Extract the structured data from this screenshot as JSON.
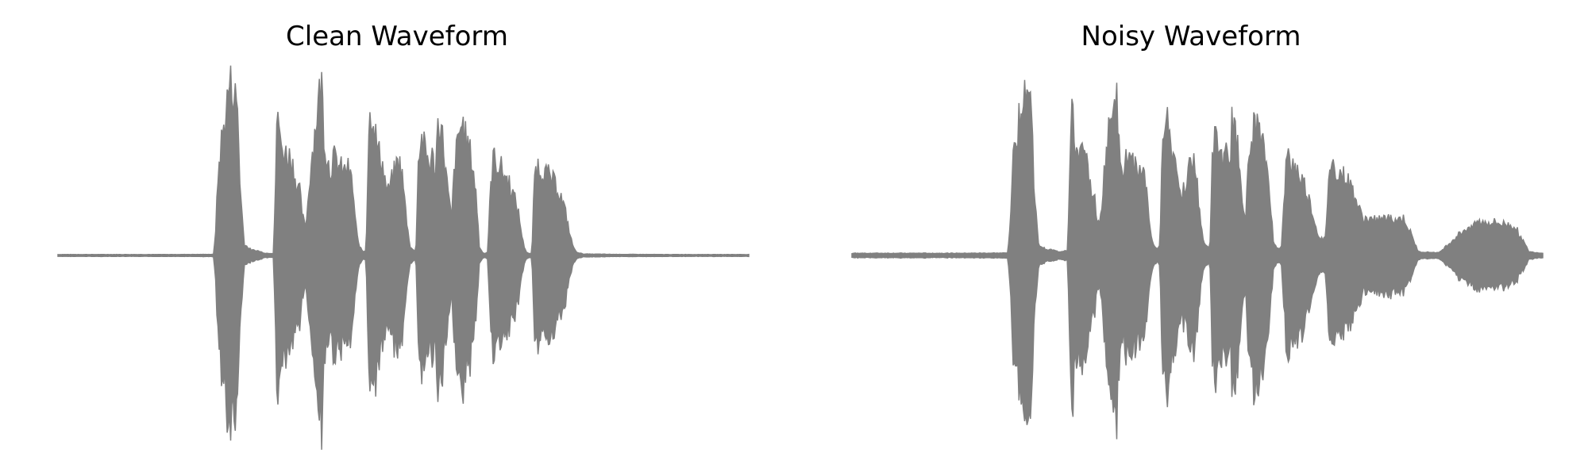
{
  "colors": {
    "waveform": "#808080",
    "background": "#ffffff"
  },
  "chart_data": [
    {
      "type": "area",
      "title": "Clean Waveform",
      "axes": "off",
      "grid": false,
      "x": [
        0.0,
        0.08,
        0.16,
        0.22,
        0.228,
        0.232,
        0.236,
        0.24,
        0.244,
        0.248,
        0.252,
        0.256,
        0.26,
        0.264,
        0.268,
        0.272,
        0.276,
        0.28,
        0.284,
        0.288,
        0.3,
        0.32,
        0.33,
        0.31,
        0.316,
        0.33,
        0.35,
        0.35,
        0.356,
        0.36,
        0.364,
        0.368,
        0.372,
        0.376,
        0.38,
        0.384,
        0.388,
        0.392,
        0.396,
        0.4,
        0.404,
        0.408,
        0.412,
        0.416,
        0.42,
        0.424,
        0.428,
        0.432,
        0.436,
        0.44,
        0.444,
        0.448,
        0.452,
        0.456,
        0.46,
        0.464,
        0.468,
        0.472,
        0.476,
        0.48,
        0.484,
        0.488,
        0.492,
        0.496,
        0.5,
        0.504,
        0.508,
        0.512,
        0.516,
        0.52,
        0.524,
        0.528,
        0.532,
        0.536,
        0.54,
        0.544,
        0.548,
        0.552,
        0.556,
        0.56,
        0.564,
        0.568,
        0.572,
        0.576,
        0.58,
        0.584,
        0.588,
        0.592,
        0.596,
        0.6,
        0.604,
        0.608,
        0.612,
        0.616,
        0.62,
        0.624,
        0.628,
        0.632,
        0.636,
        0.64,
        0.644,
        0.648,
        0.652,
        0.656,
        0.66,
        0.664,
        0.668,
        0.672,
        0.676,
        0.68,
        0.684,
        0.688,
        0.692,
        0.696,
        0.7,
        0.704,
        0.708,
        0.712,
        0.716,
        0.72,
        0.724,
        0.728,
        0.732,
        0.736,
        0.74,
        0.744,
        0.748,
        0.752,
        0.756,
        0.76,
        0.764,
        0.768,
        0.772,
        0.776,
        0.78,
        0.784,
        0.788,
        0.792,
        0.796,
        0.8,
        0.804,
        0.808,
        0.812,
        0.816,
        0.82,
        0.824,
        0.828,
        0.832,
        0.836,
        0.84,
        0.844,
        0.848,
        0.852,
        0.856,
        0.86,
        0.864,
        0.868,
        0.872,
        0.876,
        0.88,
        0.884,
        0.888,
        0.892,
        0.9,
        0.92,
        0.96,
        1.0
      ],
      "amplitude": [
        0.005,
        0.005,
        0.005,
        0.01,
        0.25,
        0.55,
        0.72,
        0.78,
        0.82,
        0.9,
        0.95,
        0.92,
        0.75,
        0.35,
        0.12,
        0.05,
        0.03,
        0.03,
        0.025,
        0.01,
        0.01,
        0.01,
        0.01,
        0.01,
        0.01,
        0.01,
        0.01,
        0.01,
        0.01,
        0.01,
        0.01,
        0.01,
        0.01,
        0.01,
        0.01,
        0.01,
        0.01,
        0.01,
        0.01,
        0.01,
        0.01,
        0.01,
        0.01,
        0.01,
        0.01,
        0.01,
        0.01,
        0.01,
        0.01,
        0.01,
        0.01,
        0.01,
        0.01,
        0.01,
        0.01,
        0.01,
        0.01,
        0.01,
        0.01,
        0.01,
        0.01,
        0.01,
        0.01,
        0.01,
        0.01,
        0.01,
        0.01,
        0.01,
        0.01,
        0.01,
        0.01,
        0.01,
        0.01,
        0.01,
        0.01,
        0.01,
        0.01,
        0.01,
        0.01,
        0.01,
        0.01,
        0.01,
        0.01,
        0.01,
        0.01,
        0.01,
        0.01,
        0.01,
        0.01,
        0.01,
        0.01,
        0.01,
        0.01,
        0.01,
        0.01,
        0.01,
        0.01,
        0.01,
        0.01,
        0.01,
        0.01,
        0.01,
        0.01,
        0.01,
        0.01,
        0.01,
        0.01,
        0.01,
        0.01,
        0.01,
        0.01,
        0.01,
        0.01,
        0.01,
        0.01,
        0.01,
        0.01,
        0.01,
        0.01,
        0.01,
        0.01,
        0.01,
        0.01,
        0.01,
        0.01,
        0.01,
        0.01,
        0.01,
        0.01,
        0.01,
        0.01,
        0.01,
        0.01,
        0.01,
        0.01,
        0.01,
        0.01,
        0.01,
        0.01,
        0.01,
        0.01,
        0.01,
        0.01,
        0.01,
        0.01,
        0.01,
        0.01,
        0.01,
        0.01,
        0.01,
        0.01,
        0.01,
        0.01,
        0.01,
        0.01,
        0.01,
        0.01,
        0.01,
        0.01,
        0.01,
        0.01,
        0.01,
        0.01,
        0.01,
        0.01,
        0.01,
        0.01,
        0.01,
        0.005,
        0.005,
        0.005,
        0.005
      ],
      "envelope": [
        [
          0.0,
          0.005
        ],
        [
          0.08,
          0.005
        ],
        [
          0.16,
          0.005
        ],
        [
          0.225,
          0.006
        ],
        [
          0.228,
          0.12
        ],
        [
          0.232,
          0.45
        ],
        [
          0.236,
          0.62
        ],
        [
          0.24,
          0.7
        ],
        [
          0.244,
          0.82
        ],
        [
          0.248,
          0.95
        ],
        [
          0.252,
          0.93
        ],
        [
          0.256,
          0.88
        ],
        [
          0.26,
          0.82
        ],
        [
          0.264,
          0.35
        ],
        [
          0.27,
          0.06
        ],
        [
          0.28,
          0.03
        ],
        [
          0.29,
          0.025
        ],
        [
          0.3,
          0.012
        ],
        [
          0.312,
          0.012
        ],
        [
          0.316,
          0.55
        ],
        [
          0.318,
          0.85
        ],
        [
          0.322,
          0.6
        ],
        [
          0.326,
          0.58
        ],
        [
          0.33,
          0.56
        ],
        [
          0.335,
          0.55
        ],
        [
          0.34,
          0.5
        ],
        [
          0.345,
          0.4
        ],
        [
          0.35,
          0.35
        ],
        [
          0.354,
          0.22
        ],
        [
          0.358,
          0.15
        ],
        [
          0.362,
          0.3
        ],
        [
          0.366,
          0.5
        ],
        [
          0.37,
          0.62
        ],
        [
          0.374,
          0.75
        ],
        [
          0.378,
          0.88
        ],
        [
          0.382,
          0.95
        ],
        [
          0.386,
          0.6
        ],
        [
          0.39,
          0.55
        ],
        [
          0.394,
          0.45
        ],
        [
          0.398,
          0.55
        ],
        [
          0.402,
          0.52
        ],
        [
          0.406,
          0.5
        ],
        [
          0.41,
          0.48
        ],
        [
          0.414,
          0.45
        ],
        [
          0.418,
          0.5
        ],
        [
          0.422,
          0.45
        ],
        [
          0.426,
          0.4
        ],
        [
          0.43,
          0.22
        ],
        [
          0.434,
          0.08
        ],
        [
          0.438,
          0.04
        ],
        [
          0.442,
          0.02
        ],
        [
          0.446,
          0.03
        ],
        [
          0.45,
          0.7
        ],
        [
          0.454,
          0.82
        ],
        [
          0.458,
          0.72
        ],
        [
          0.462,
          0.6
        ],
        [
          0.466,
          0.55
        ],
        [
          0.47,
          0.5
        ],
        [
          0.474,
          0.4
        ],
        [
          0.478,
          0.35
        ],
        [
          0.482,
          0.4
        ],
        [
          0.486,
          0.45
        ],
        [
          0.49,
          0.5
        ],
        [
          0.494,
          0.52
        ],
        [
          0.498,
          0.45
        ],
        [
          0.502,
          0.3
        ],
        [
          0.506,
          0.15
        ],
        [
          0.51,
          0.05
        ],
        [
          0.514,
          0.03
        ],
        [
          0.518,
          0.02
        ],
        [
          0.522,
          0.55
        ],
        [
          0.526,
          0.65
        ],
        [
          0.53,
          0.6
        ],
        [
          0.534,
          0.55
        ],
        [
          0.538,
          0.5
        ],
        [
          0.542,
          0.55
        ],
        [
          0.546,
          0.45
        ],
        [
          0.55,
          0.72
        ],
        [
          0.554,
          0.74
        ],
        [
          0.558,
          0.6
        ],
        [
          0.562,
          0.45
        ],
        [
          0.566,
          0.3
        ],
        [
          0.57,
          0.2
        ],
        [
          0.574,
          0.5
        ],
        [
          0.578,
          0.6
        ],
        [
          0.582,
          0.7
        ],
        [
          0.586,
          0.73
        ],
        [
          0.59,
          0.65
        ],
        [
          0.594,
          0.6
        ],
        [
          0.598,
          0.55
        ],
        [
          0.602,
          0.45
        ],
        [
          0.606,
          0.3
        ],
        [
          0.61,
          0.05
        ],
        [
          0.614,
          0.02
        ],
        [
          0.618,
          0.01
        ],
        [
          0.622,
          0.02
        ],
        [
          0.626,
          0.35
        ],
        [
          0.63,
          0.55
        ],
        [
          0.634,
          0.5
        ],
        [
          0.638,
          0.5
        ],
        [
          0.642,
          0.48
        ],
        [
          0.646,
          0.45
        ],
        [
          0.65,
          0.42
        ],
        [
          0.654,
          0.4
        ],
        [
          0.658,
          0.35
        ],
        [
          0.662,
          0.3
        ],
        [
          0.666,
          0.25
        ],
        [
          0.67,
          0.15
        ],
        [
          0.674,
          0.06
        ],
        [
          0.678,
          0.02
        ],
        [
          0.682,
          0.01
        ],
        [
          0.686,
          0.01
        ],
        [
          0.69,
          0.45
        ],
        [
          0.694,
          0.5
        ],
        [
          0.698,
          0.48
        ],
        [
          0.702,
          0.47
        ],
        [
          0.706,
          0.45
        ],
        [
          0.71,
          0.44
        ],
        [
          0.714,
          0.42
        ],
        [
          0.718,
          0.4
        ],
        [
          0.722,
          0.38
        ],
        [
          0.726,
          0.35
        ],
        [
          0.73,
          0.3
        ],
        [
          0.734,
          0.25
        ],
        [
          0.738,
          0.18
        ],
        [
          0.742,
          0.1
        ],
        [
          0.746,
          0.05
        ],
        [
          0.75,
          0.02
        ],
        [
          0.76,
          0.008
        ],
        [
          0.8,
          0.006
        ],
        [
          0.9,
          0.005
        ],
        [
          1.0,
          0.005
        ]
      ]
    },
    {
      "type": "area",
      "title": "Noisy Waveform",
      "axes": "off",
      "grid": false,
      "envelope": [
        [
          0.0,
          0.012
        ],
        [
          0.08,
          0.012
        ],
        [
          0.16,
          0.012
        ],
        [
          0.225,
          0.013
        ],
        [
          0.228,
          0.12
        ],
        [
          0.232,
          0.45
        ],
        [
          0.236,
          0.62
        ],
        [
          0.24,
          0.7
        ],
        [
          0.244,
          0.82
        ],
        [
          0.248,
          0.95
        ],
        [
          0.252,
          0.93
        ],
        [
          0.256,
          0.88
        ],
        [
          0.26,
          0.82
        ],
        [
          0.264,
          0.35
        ],
        [
          0.27,
          0.06
        ],
        [
          0.28,
          0.035
        ],
        [
          0.29,
          0.03
        ],
        [
          0.3,
          0.02
        ],
        [
          0.312,
          0.03
        ],
        [
          0.316,
          0.55
        ],
        [
          0.318,
          0.85
        ],
        [
          0.322,
          0.6
        ],
        [
          0.326,
          0.58
        ],
        [
          0.33,
          0.56
        ],
        [
          0.335,
          0.55
        ],
        [
          0.34,
          0.5
        ],
        [
          0.345,
          0.4
        ],
        [
          0.35,
          0.35
        ],
        [
          0.354,
          0.22
        ],
        [
          0.358,
          0.15
        ],
        [
          0.362,
          0.3
        ],
        [
          0.366,
          0.5
        ],
        [
          0.37,
          0.62
        ],
        [
          0.374,
          0.75
        ],
        [
          0.378,
          0.88
        ],
        [
          0.382,
          0.95
        ],
        [
          0.386,
          0.6
        ],
        [
          0.39,
          0.55
        ],
        [
          0.394,
          0.45
        ],
        [
          0.398,
          0.55
        ],
        [
          0.402,
          0.52
        ],
        [
          0.406,
          0.5
        ],
        [
          0.41,
          0.48
        ],
        [
          0.414,
          0.45
        ],
        [
          0.418,
          0.5
        ],
        [
          0.422,
          0.45
        ],
        [
          0.426,
          0.4
        ],
        [
          0.43,
          0.22
        ],
        [
          0.434,
          0.08
        ],
        [
          0.438,
          0.05
        ],
        [
          0.442,
          0.04
        ],
        [
          0.446,
          0.05
        ],
        [
          0.45,
          0.7
        ],
        [
          0.454,
          0.82
        ],
        [
          0.458,
          0.72
        ],
        [
          0.462,
          0.6
        ],
        [
          0.466,
          0.55
        ],
        [
          0.47,
          0.5
        ],
        [
          0.474,
          0.4
        ],
        [
          0.478,
          0.35
        ],
        [
          0.482,
          0.4
        ],
        [
          0.486,
          0.45
        ],
        [
          0.49,
          0.5
        ],
        [
          0.494,
          0.52
        ],
        [
          0.498,
          0.45
        ],
        [
          0.502,
          0.3
        ],
        [
          0.506,
          0.15
        ],
        [
          0.51,
          0.06
        ],
        [
          0.514,
          0.05
        ],
        [
          0.518,
          0.04
        ],
        [
          0.522,
          0.55
        ],
        [
          0.526,
          0.65
        ],
        [
          0.53,
          0.6
        ],
        [
          0.534,
          0.55
        ],
        [
          0.538,
          0.5
        ],
        [
          0.542,
          0.55
        ],
        [
          0.546,
          0.45
        ],
        [
          0.55,
          0.72
        ],
        [
          0.554,
          0.74
        ],
        [
          0.558,
          0.6
        ],
        [
          0.562,
          0.45
        ],
        [
          0.566,
          0.3
        ],
        [
          0.57,
          0.2
        ],
        [
          0.574,
          0.5
        ],
        [
          0.578,
          0.6
        ],
        [
          0.582,
          0.7
        ],
        [
          0.586,
          0.73
        ],
        [
          0.59,
          0.65
        ],
        [
          0.594,
          0.6
        ],
        [
          0.598,
          0.55
        ],
        [
          0.602,
          0.45
        ],
        [
          0.606,
          0.3
        ],
        [
          0.61,
          0.07
        ],
        [
          0.614,
          0.05
        ],
        [
          0.618,
          0.04
        ],
        [
          0.622,
          0.05
        ],
        [
          0.626,
          0.35
        ],
        [
          0.63,
          0.55
        ],
        [
          0.634,
          0.5
        ],
        [
          0.638,
          0.5
        ],
        [
          0.642,
          0.48
        ],
        [
          0.646,
          0.45
        ],
        [
          0.65,
          0.42
        ],
        [
          0.654,
          0.4
        ],
        [
          0.658,
          0.35
        ],
        [
          0.662,
          0.3
        ],
        [
          0.666,
          0.25
        ],
        [
          0.67,
          0.18
        ],
        [
          0.674,
          0.12
        ],
        [
          0.678,
          0.1
        ],
        [
          0.682,
          0.08
        ],
        [
          0.686,
          0.1
        ],
        [
          0.69,
          0.45
        ],
        [
          0.694,
          0.5
        ],
        [
          0.698,
          0.48
        ],
        [
          0.702,
          0.47
        ],
        [
          0.706,
          0.45
        ],
        [
          0.71,
          0.44
        ],
        [
          0.714,
          0.42
        ],
        [
          0.718,
          0.4
        ],
        [
          0.722,
          0.38
        ],
        [
          0.726,
          0.35
        ],
        [
          0.73,
          0.3
        ],
        [
          0.734,
          0.25
        ],
        [
          0.738,
          0.22
        ],
        [
          0.742,
          0.2
        ],
        [
          0.746,
          0.2
        ],
        [
          0.75,
          0.2
        ],
        [
          0.754,
          0.19
        ],
        [
          0.76,
          0.2
        ],
        [
          0.77,
          0.2
        ],
        [
          0.79,
          0.2
        ],
        [
          0.8,
          0.2
        ],
        [
          0.82,
          0.02
        ],
        [
          0.85,
          0.015
        ],
        [
          0.88,
          0.12
        ],
        [
          0.9,
          0.18
        ],
        [
          0.93,
          0.18
        ],
        [
          0.96,
          0.16
        ],
        [
          0.98,
          0.02
        ],
        [
          1.0,
          0.012
        ]
      ]
    }
  ]
}
